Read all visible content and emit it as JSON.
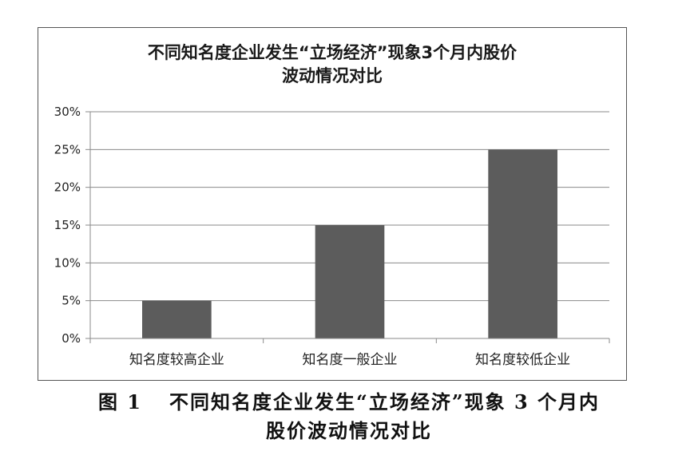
{
  "chart_data": {
    "type": "bar",
    "title_line1": "不同知名度企业发生“立场经济”现象3个月内股价",
    "title_line2": "波动情况对比",
    "categories": [
      "知名度较高企业",
      "知名度一般企业",
      "知名度较低企业"
    ],
    "values": [
      5,
      15,
      25
    ],
    "yticks": [
      "0%",
      "5%",
      "10%",
      "15%",
      "20%",
      "25%",
      "30%"
    ],
    "ylim": [
      0,
      30
    ],
    "grid": true,
    "bar_color": "#5c5c5c"
  },
  "caption": {
    "figure_number": "图 1",
    "line1": "不同知名度企业发生“立场经济”现象 3 个月内",
    "line2": "股价波动情况对比"
  }
}
